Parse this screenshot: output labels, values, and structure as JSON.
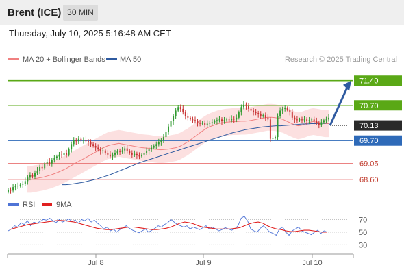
{
  "header": {
    "instrument": "Brent (ICE)",
    "timeframe": "30 MIN",
    "datetime": "Thursday, July 10, 2025 5:16:48 AM CET"
  },
  "legend": {
    "ma20_label": "MA 20 + Bollinger Bands",
    "ma50_label": "MA 50",
    "credit": "Research © 2025 Trading Central",
    "ma20_color": "#f08080",
    "ma50_color": "#2e5aa0"
  },
  "rsi_legend": {
    "rsi_label": "RSI",
    "ma_label": "9MA",
    "rsi_color": "#4f74d6",
    "ma_color": "#e02020"
  },
  "colors": {
    "resistance": "#5aa816",
    "pivot": "#2e6ab8",
    "support": "#e87070",
    "current": "#2a2a2a",
    "bull_candle": "#2f9a2f",
    "bear_candle": "#c83232",
    "band_fill": "#fbd6d6"
  },
  "chart_data": [
    {
      "type": "candlestick",
      "x_ticks": [
        "Jul 8",
        "Jul 9",
        "Jul 10"
      ],
      "ylim": [
        68.15,
        71.9
      ],
      "levels": [
        {
          "label": "71.40",
          "value": 71.4,
          "kind": "resistance"
        },
        {
          "label": "70.70",
          "value": 70.7,
          "kind": "resistance"
        },
        {
          "label": "70.13",
          "value": 70.13,
          "kind": "current"
        },
        {
          "label": "69.70",
          "value": 69.7,
          "kind": "pivot"
        },
        {
          "label": "69.05",
          "value": 69.05,
          "kind": "support"
        },
        {
          "label": "68.60",
          "value": 68.6,
          "kind": "support"
        }
      ],
      "close": [
        68.3,
        68.28,
        68.38,
        68.4,
        68.42,
        68.45,
        68.48,
        68.55,
        68.65,
        68.72,
        68.68,
        68.78,
        68.85,
        68.95,
        68.92,
        69.05,
        69.1,
        69.05,
        69.15,
        69.2,
        69.25,
        69.3,
        69.28,
        69.35,
        69.3,
        69.45,
        69.6,
        69.7,
        69.68,
        69.75,
        69.7,
        69.72,
        69.68,
        69.65,
        69.6,
        69.55,
        69.5,
        69.45,
        69.4,
        69.42,
        69.35,
        69.3,
        69.25,
        69.3,
        69.35,
        69.4,
        69.38,
        69.42,
        69.48,
        69.4,
        69.35,
        69.3,
        69.32,
        69.28,
        69.25,
        69.3,
        69.35,
        69.4,
        69.45,
        69.5,
        69.55,
        69.6,
        69.65,
        69.7,
        69.8,
        69.95,
        70.1,
        70.25,
        70.4,
        70.55,
        70.65,
        70.6,
        70.5,
        70.4,
        70.35,
        70.3,
        70.28,
        70.25,
        70.2,
        70.18,
        70.2,
        70.15,
        70.18,
        70.2,
        70.22,
        70.25,
        70.28,
        70.3,
        70.25,
        70.28,
        70.3,
        70.28,
        70.32,
        70.3,
        70.35,
        70.5,
        70.65,
        70.72,
        70.68,
        70.6,
        70.55,
        70.5,
        70.48,
        70.45,
        70.4,
        70.42,
        70.35,
        70.3,
        69.75,
        69.78,
        69.8,
        70.4,
        70.55,
        70.6,
        70.62,
        70.58,
        70.5,
        70.35,
        70.3,
        70.28,
        70.3,
        70.28,
        70.3,
        70.25,
        70.28,
        70.3,
        70.25,
        70.2,
        70.15,
        70.22,
        70.28,
        70.3,
        70.35
      ],
      "ma20": [
        68.6,
        68.6,
        68.62,
        68.64,
        68.66,
        68.69,
        68.72,
        68.76,
        68.8,
        68.85,
        68.9,
        68.96,
        69.02,
        69.08,
        69.14,
        69.2,
        69.26,
        69.32,
        69.38,
        69.44,
        69.5,
        69.55,
        69.58,
        69.6,
        69.62,
        69.6,
        69.58,
        69.56,
        69.54,
        69.52,
        69.5,
        69.49,
        69.48,
        69.46,
        69.45,
        69.44,
        69.45,
        69.46,
        69.48,
        69.5,
        69.54,
        69.6,
        69.66,
        69.74,
        69.82,
        69.9,
        69.98,
        70.05,
        70.1,
        70.14,
        70.18,
        70.2,
        70.22,
        70.23,
        70.24,
        70.24,
        70.25,
        70.25,
        70.26,
        70.28,
        70.3,
        70.32,
        70.34,
        70.36,
        70.36,
        70.35,
        70.33,
        70.3,
        70.25,
        70.2,
        70.15,
        70.12,
        70.14,
        70.18,
        70.22,
        70.24,
        70.22,
        70.2,
        70.18,
        70.18
      ],
      "ma50": [
        68.45,
        68.45,
        68.46,
        68.48,
        68.5,
        68.52,
        68.55,
        68.58,
        68.61,
        68.65,
        68.69,
        68.73,
        68.78,
        68.83,
        68.88,
        68.93,
        68.98,
        69.03,
        69.08,
        69.12,
        69.16,
        69.2,
        69.24,
        69.28,
        69.32,
        69.36,
        69.4,
        69.44,
        69.48,
        69.52,
        69.56,
        69.6,
        69.64,
        69.68,
        69.72,
        69.76,
        69.8,
        69.84,
        69.88,
        69.92,
        69.95,
        69.98,
        70.01,
        70.03,
        70.05,
        70.07,
        70.09,
        70.1,
        70.11,
        70.12,
        70.12,
        70.13,
        70.14,
        70.15,
        70.16,
        70.17,
        70.17,
        70.18,
        70.18,
        70.19,
        70.19,
        70.2
      ],
      "forecast_arrow": {
        "from": 70.13,
        "to": 71.4
      }
    },
    {
      "type": "line",
      "title": "RSI",
      "y_ticks": [
        70,
        50,
        30
      ],
      "ylim": [
        25,
        78
      ],
      "series": [
        {
          "name": "RSI",
          "values": [
            52,
            55,
            60,
            58,
            65,
            62,
            68,
            60,
            66,
            64,
            67,
            70,
            69,
            72,
            68,
            65,
            70,
            66,
            68,
            71,
            67,
            69,
            64,
            70,
            68,
            72,
            66,
            69,
            64,
            60,
            55,
            58,
            52,
            55,
            50,
            54,
            57,
            60,
            56,
            53,
            51,
            49,
            52,
            55,
            50,
            53,
            56,
            60,
            58,
            62,
            65,
            70,
            66,
            62,
            60,
            58,
            60,
            55,
            58,
            56,
            54,
            57,
            60,
            55,
            58,
            55,
            52,
            54,
            57,
            55,
            53,
            55,
            60,
            72,
            75,
            68,
            55,
            52,
            50,
            56,
            60,
            55,
            50,
            48,
            45,
            55,
            58,
            50,
            45,
            52,
            55,
            58,
            52,
            50,
            48,
            46,
            50,
            53,
            48,
            52,
            50
          ]
        },
        {
          "name": "9MA",
          "values": [
            54,
            56,
            58,
            60,
            62,
            63,
            64,
            65,
            66,
            67,
            68,
            68.5,
            68,
            67,
            66,
            64,
            62,
            60,
            58,
            56,
            55,
            54,
            54,
            55,
            56,
            57,
            58,
            58,
            57,
            56,
            55,
            54,
            54,
            55,
            56,
            58,
            61,
            64,
            66,
            65,
            63,
            60,
            58,
            57,
            56,
            55,
            55,
            55,
            55,
            56,
            57,
            60,
            63,
            65,
            66,
            64,
            60,
            57,
            55,
            54,
            52,
            51,
            51,
            52,
            53,
            53,
            52,
            51,
            50,
            50
          ]
        }
      ]
    }
  ]
}
